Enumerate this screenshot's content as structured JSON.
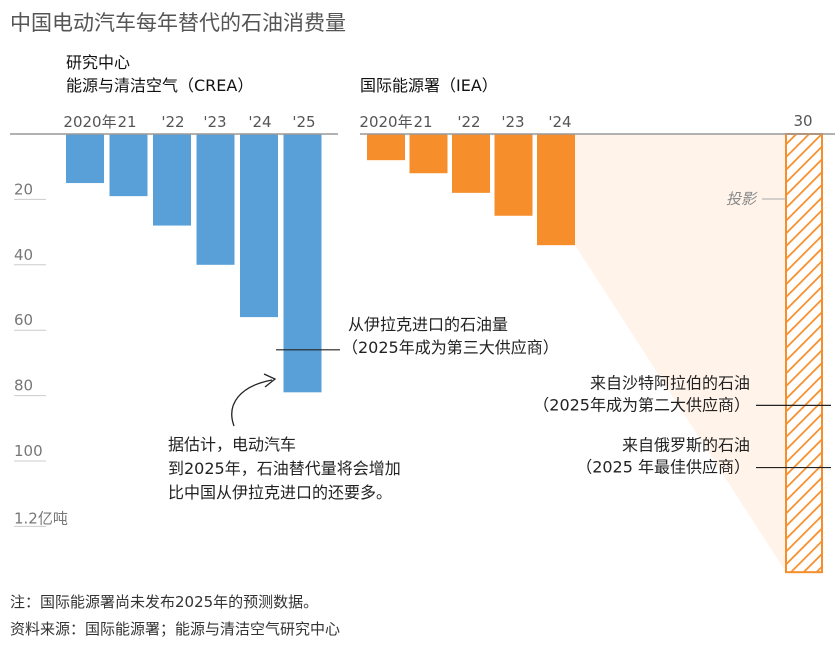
{
  "chart_data": {
    "type": "bar",
    "title": "中国电动汽车每年替代的石油消费量",
    "y_unit_label": "1.2亿吨",
    "y_ticks": [
      "20",
      "40",
      "60",
      "80",
      "100"
    ],
    "ylim": [
      0,
      120
    ],
    "orientation": "bars hang downward from top axis",
    "colors": {
      "crea": "#5aa0d8",
      "iea": "#f68e2b",
      "projection_fill": "#fff3ea",
      "hatch": "#f68e2b",
      "axis": "#999999"
    },
    "panels": [
      {
        "name_line1": "研究中心",
        "name_line2": "能源与清洁空气（CREA）",
        "categories": [
          "2020年",
          "21",
          "'22",
          "'23",
          "'24",
          "'25"
        ],
        "values": [
          15,
          19,
          28,
          40,
          56,
          79
        ]
      },
      {
        "name_line1": "",
        "name_line2": "国际能源署（IEA）",
        "categories": [
          "2020年",
          "21",
          "'22",
          "'23",
          "'24"
        ],
        "values": [
          8,
          12,
          18,
          25,
          34
        ],
        "projection": {
          "label": "30",
          "value": 134,
          "annotation": "投影"
        }
      }
    ],
    "reference_lines": [
      {
        "value": 66,
        "line1": "从伊拉克进口的石油量",
        "line2": "（2025年成为第三大供应商）"
      },
      {
        "value": 83,
        "line1": "来自沙特阿拉伯的石油",
        "line2": "（2025年成为第二大供应商）"
      },
      {
        "value": 102,
        "line1": "来自俄罗斯的石油",
        "line2": "（2025 年最佳供应商）"
      }
    ],
    "callout": {
      "line1": "据估计，电动汽车",
      "line2": "到2025年，石油替代量将会增加",
      "line3": "比中国从伊拉克进口的还要多。"
    }
  },
  "footer": {
    "note": "注：国际能源署尚未发布2025年的预测数据。",
    "source": "资料来源：国际能源署；能源与清洁空气研究中心"
  }
}
